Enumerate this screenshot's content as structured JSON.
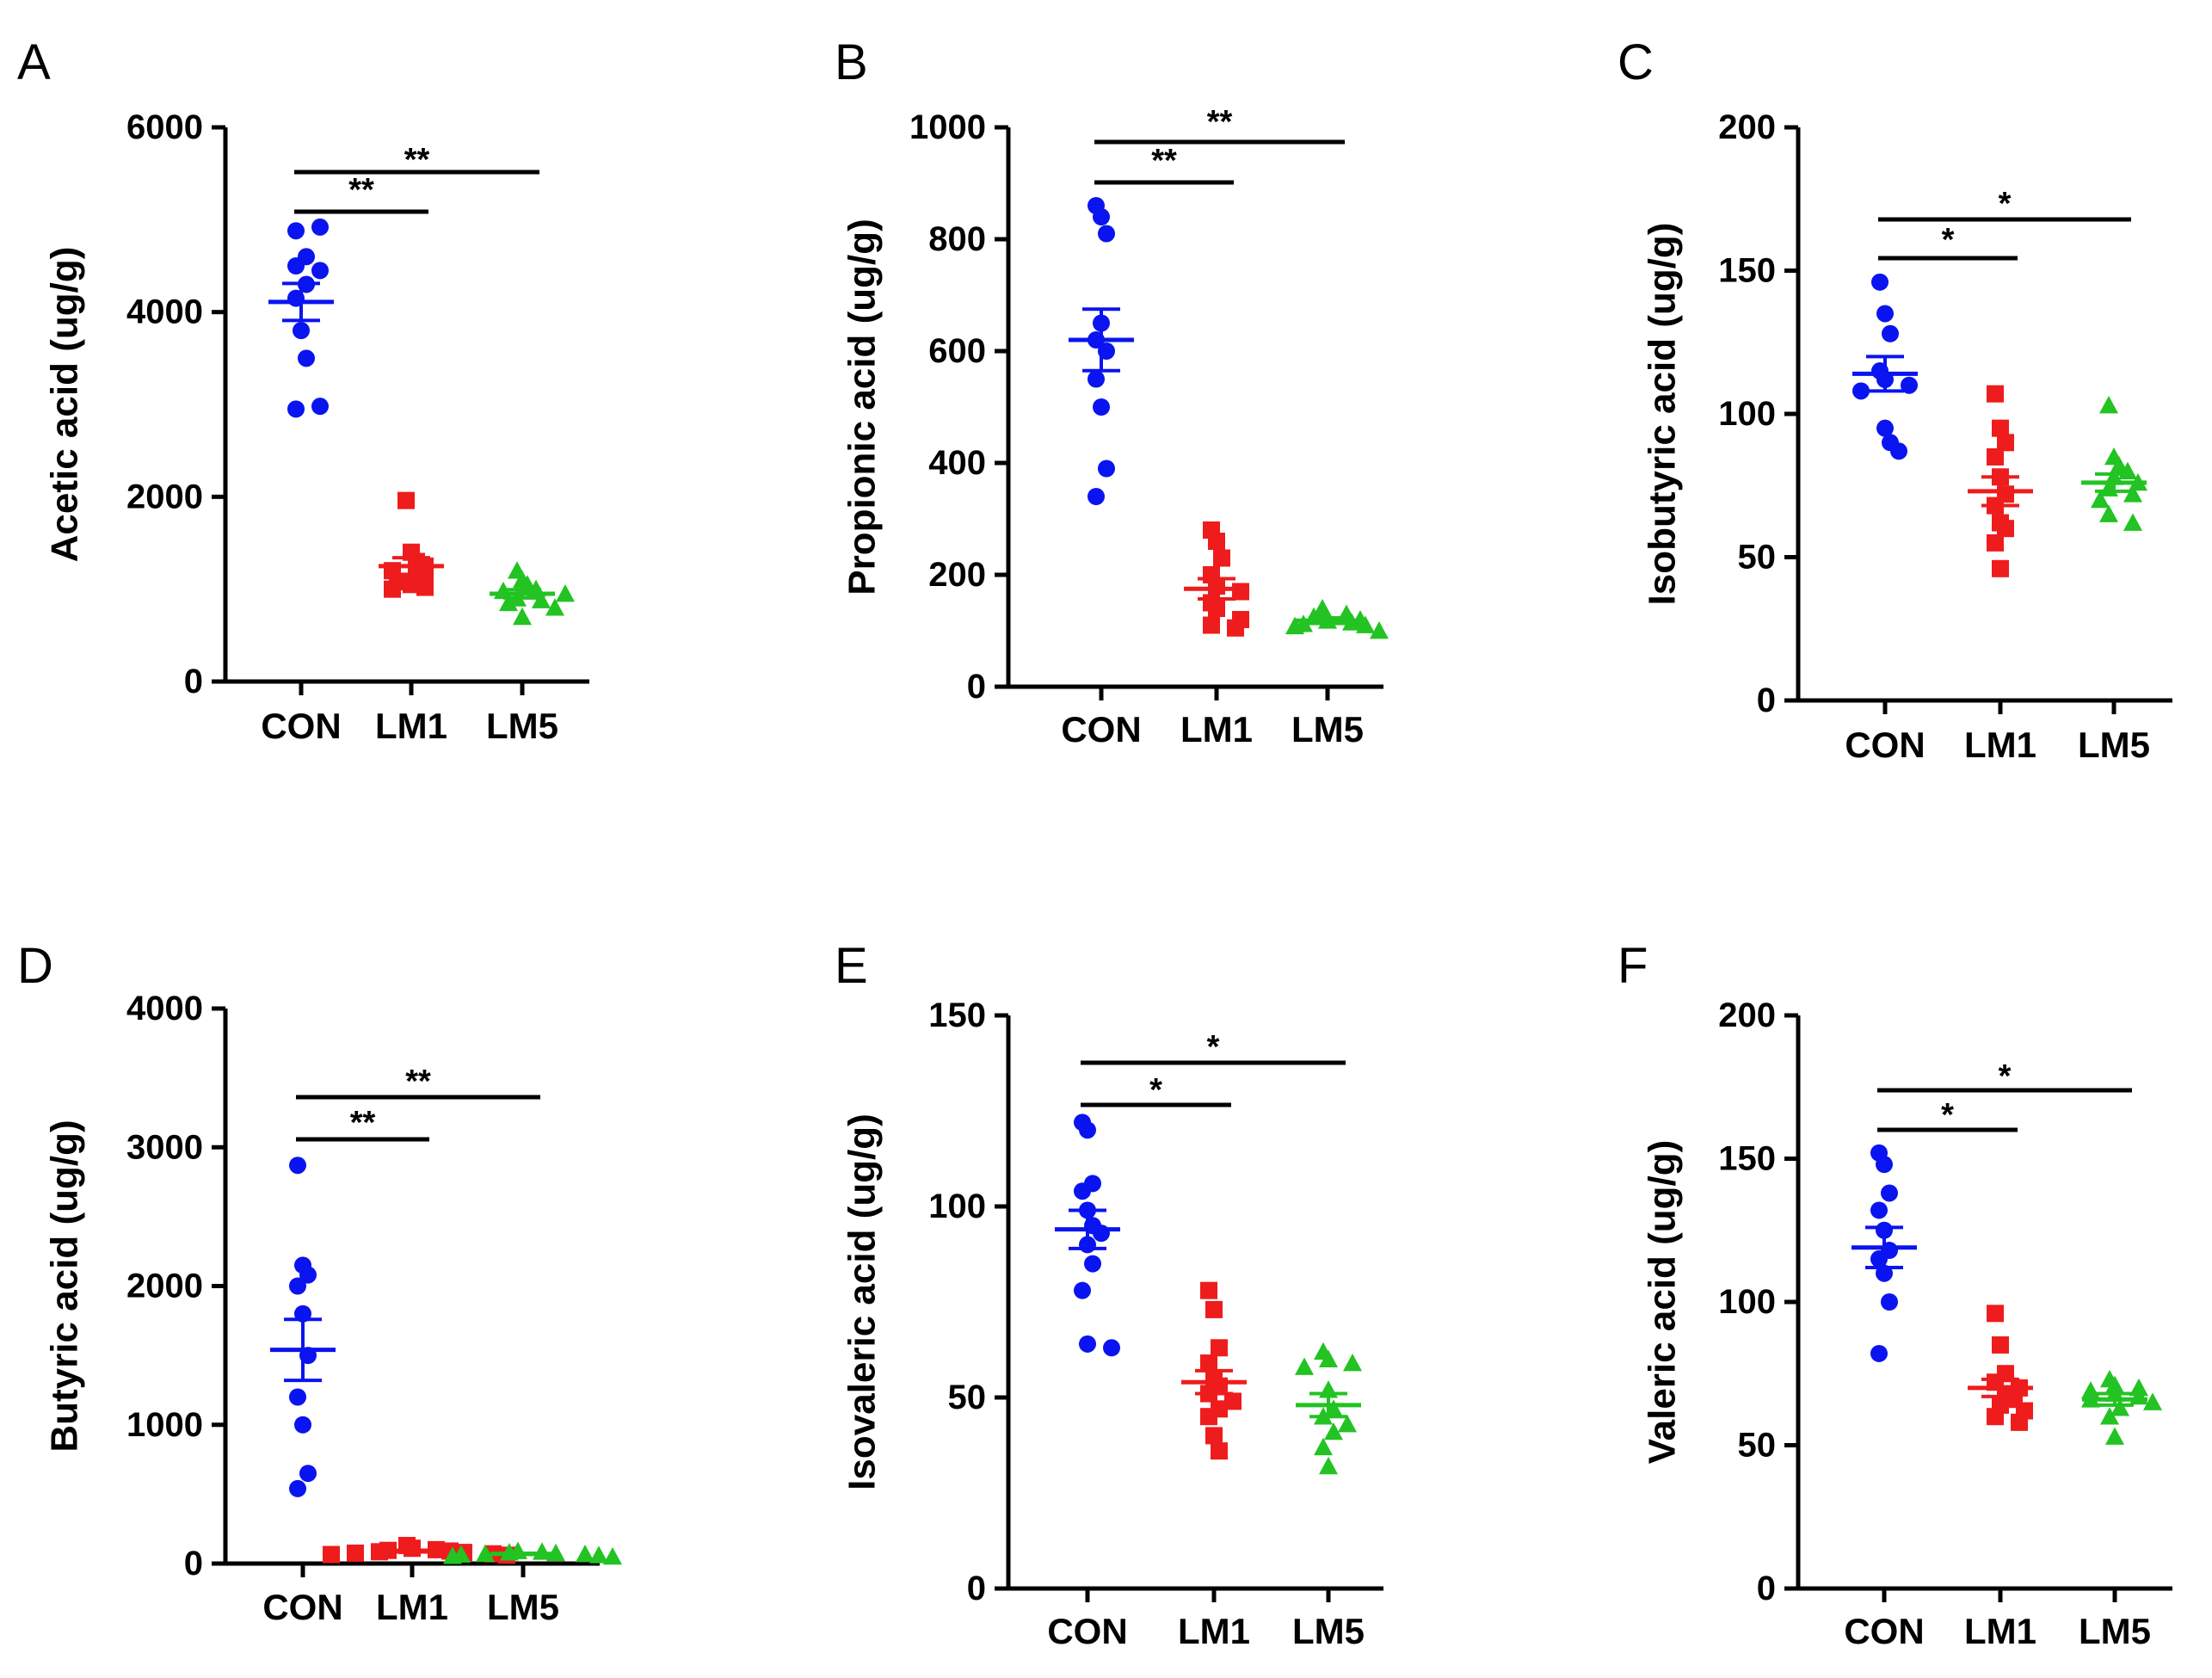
{
  "groups": [
    "CON",
    "LM1",
    "LM5"
  ],
  "colors": {
    "CON": "#0a14f0",
    "LM1": "#ee1c1c",
    "LM5": "#22c322",
    "axis": "#000000"
  },
  "markers": {
    "CON": "circle",
    "LM1": "square",
    "LM5": "triangle"
  },
  "chart_data": [
    {
      "panel": "A",
      "type": "scatter",
      "ylabel": "Acetic acid (ug/g)",
      "ylim": [
        0,
        6000
      ],
      "yticks": [
        0,
        2000,
        4000,
        6000
      ],
      "categories": [
        "CON",
        "LM1",
        "LM5"
      ],
      "series": [
        {
          "name": "CON",
          "values": [
            4880,
            4920,
            4600,
            4500,
            4450,
            4300,
            4150,
            3800,
            3500,
            2950,
            2980
          ],
          "mean": 4110,
          "sem": 200
        },
        {
          "name": "LM1",
          "values": [
            1960,
            1400,
            1300,
            1250,
            1200,
            1150,
            1100,
            1050,
            1080,
            1020,
            1000
          ],
          "mean": 1250,
          "sem": 90
        },
        {
          "name": "LM5",
          "values": [
            1200,
            1100,
            1050,
            1000,
            980,
            950,
            900,
            880,
            850,
            800,
            700
          ],
          "mean": 950,
          "sem": 45
        }
      ],
      "significance": [
        {
          "from": "CON",
          "to": "LM1",
          "label": "**"
        },
        {
          "from": "CON",
          "to": "LM5",
          "label": "**"
        }
      ]
    },
    {
      "panel": "B",
      "type": "scatter",
      "ylabel": "Propionic acid (ug/g)",
      "ylim": [
        0,
        1000
      ],
      "yticks": [
        0,
        200,
        400,
        600,
        800,
        1000
      ],
      "categories": [
        "CON",
        "LM1",
        "LM5"
      ],
      "series": [
        {
          "name": "CON",
          "values": [
            860,
            840,
            810,
            620,
            650,
            600,
            550,
            500,
            390,
            340
          ],
          "mean": 620,
          "sem": 55
        },
        {
          "name": "LM1",
          "values": [
            280,
            260,
            230,
            200,
            180,
            170,
            150,
            140,
            120,
            110,
            105
          ],
          "mean": 175,
          "sem": 18
        },
        {
          "name": "LM5",
          "values": [
            140,
            130,
            125,
            120,
            118,
            115,
            112,
            110,
            108,
            100
          ],
          "mean": 118,
          "sem": 5
        }
      ],
      "significance": [
        {
          "from": "CON",
          "to": "LM1",
          "label": "**"
        },
        {
          "from": "CON",
          "to": "LM5",
          "label": "**"
        }
      ]
    },
    {
      "panel": "C",
      "type": "scatter",
      "ylabel": "Isobutyric acid (ug/g)",
      "ylim": [
        0,
        200
      ],
      "yticks": [
        0,
        50,
        100,
        150,
        200
      ],
      "categories": [
        "CON",
        "LM1",
        "LM5"
      ],
      "series": [
        {
          "name": "CON",
          "values": [
            146,
            135,
            128,
            115,
            112,
            110,
            108,
            95,
            90,
            87
          ],
          "mean": 114,
          "sem": 6
        },
        {
          "name": "LM1",
          "values": [
            107,
            95,
            90,
            85,
            78,
            72,
            68,
            62,
            60,
            55,
            46
          ],
          "mean": 73,
          "sem": 5
        },
        {
          "name": "LM5",
          "values": [
            103,
            85,
            82,
            80,
            78,
            76,
            74,
            72,
            70,
            65,
            62
          ],
          "mean": 76,
          "sem": 3
        }
      ],
      "significance": [
        {
          "from": "CON",
          "to": "LM1",
          "label": "*"
        },
        {
          "from": "CON",
          "to": "LM5",
          "label": "*"
        }
      ]
    },
    {
      "panel": "D",
      "type": "scatter",
      "ylabel": "Butyric acid (ug/g)",
      "ylim": [
        0,
        4000
      ],
      "yticks": [
        0,
        1000,
        2000,
        3000,
        4000
      ],
      "categories": [
        "CON",
        "LM1",
        "LM5"
      ],
      "series": [
        {
          "name": "CON",
          "values": [
            2870,
            2150,
            2080,
            2000,
            1800,
            1500,
            1200,
            1000,
            650,
            540
          ],
          "mean": 1540,
          "sem": 220
        },
        {
          "name": "LM1",
          "values": [
            130,
            110,
            100,
            95,
            90,
            85,
            80,
            75,
            70,
            65,
            60
          ],
          "mean": 90,
          "sem": 6
        },
        {
          "name": "LM5",
          "values": [
            90,
            85,
            80,
            75,
            70,
            68,
            65,
            60,
            55,
            50
          ],
          "mean": 70,
          "sem": 4
        }
      ],
      "significance": [
        {
          "from": "CON",
          "to": "LM1",
          "label": "**"
        },
        {
          "from": "CON",
          "to": "LM5",
          "label": "**"
        }
      ]
    },
    {
      "panel": "E",
      "type": "scatter",
      "ylabel": "Isovaleric acid (ug/g)",
      "ylim": [
        0,
        150
      ],
      "yticks": [
        0,
        50,
        100,
        150
      ],
      "categories": [
        "CON",
        "LM1",
        "LM5"
      ],
      "series": [
        {
          "name": "CON",
          "values": [
            122,
            120,
            106,
            104,
            99,
            95,
            93,
            90,
            85,
            78,
            64,
            63
          ],
          "mean": 94,
          "sem": 5
        },
        {
          "name": "LM1",
          "values": [
            78,
            73,
            63,
            59,
            55,
            53,
            51,
            49,
            47,
            45,
            40,
            36
          ],
          "mean": 54,
          "sem": 3
        },
        {
          "name": "LM5",
          "values": [
            62,
            60,
            59,
            58,
            52,
            47,
            45,
            43,
            41,
            37,
            32
          ],
          "mean": 48,
          "sem": 3
        }
      ],
      "significance": [
        {
          "from": "CON",
          "to": "LM1",
          "label": "*"
        },
        {
          "from": "CON",
          "to": "LM5",
          "label": "*"
        }
      ]
    },
    {
      "panel": "F",
      "type": "scatter",
      "ylabel": "Valeric acid (ug/g)",
      "ylim": [
        0,
        200
      ],
      "yticks": [
        0,
        50,
        100,
        150,
        200
      ],
      "categories": [
        "CON",
        "LM1",
        "LM5"
      ],
      "series": [
        {
          "name": "CON",
          "values": [
            152,
            148,
            138,
            132,
            125,
            118,
            115,
            110,
            100,
            82
          ],
          "mean": 119,
          "sem": 7
        },
        {
          "name": "LM1",
          "values": [
            96,
            85,
            75,
            72,
            70,
            68,
            66,
            64,
            62,
            60,
            58
          ],
          "mean": 70,
          "sem": 3
        },
        {
          "name": "LM5",
          "values": [
            73,
            71,
            70,
            69,
            68,
            67,
            66,
            65,
            63,
            60,
            53
          ],
          "mean": 66,
          "sem": 2
        }
      ],
      "significance": [
        {
          "from": "CON",
          "to": "LM1",
          "label": "*"
        },
        {
          "from": "CON",
          "to": "LM5",
          "label": "*"
        }
      ]
    }
  ]
}
